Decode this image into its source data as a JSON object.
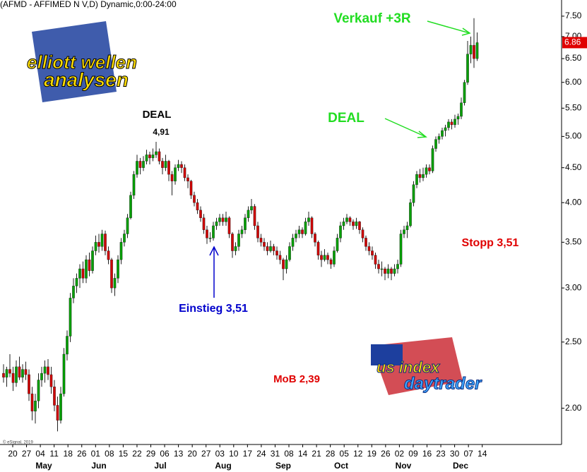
{
  "chart_data": {
    "type": "candlestick",
    "title": "(AFMD - AFFIMED N V,D) Dynamic,0:00-24:00",
    "log_scale": true,
    "ylim": [
      1.77,
      7.92
    ],
    "yticks": [
      {
        "value": 2,
        "label": "2.00"
      },
      {
        "value": 2.5,
        "label": "2.50"
      },
      {
        "value": 3,
        "label": "3.00"
      },
      {
        "value": 3.5,
        "label": "3.50"
      },
      {
        "value": 4,
        "label": "4.00"
      },
      {
        "value": 4.5,
        "label": "4.50"
      },
      {
        "value": 5,
        "label": "5.00"
      },
      {
        "value": 5.5,
        "label": "5.50"
      },
      {
        "value": 6,
        "label": "6.00"
      },
      {
        "value": 6.5,
        "label": "6.50"
      },
      {
        "value": 7,
        "label": "7.00"
      },
      {
        "value": 7.5,
        "label": "7.50"
      }
    ],
    "x_tick_labels": [
      "20",
      "27",
      "04",
      "11",
      "18",
      "26",
      "01",
      "08",
      "15",
      "22",
      "29",
      "06",
      "13",
      "20",
      "27",
      "03",
      "10",
      "17",
      "24",
      "31",
      "08",
      "14",
      "21",
      "28",
      "05",
      "12",
      "19",
      "26",
      "02",
      "09",
      "16",
      "23",
      "30",
      "07",
      "14"
    ],
    "months": [
      "May",
      "Jun",
      "Jul",
      "Aug",
      "Sep",
      "Oct",
      "Nov",
      "Dec"
    ],
    "up_color": "#00a000",
    "down_color": "#d00000",
    "ohlc": [
      [
        2.25,
        2.32,
        2.18,
        2.22
      ],
      [
        2.22,
        2.3,
        2.15,
        2.28
      ],
      [
        2.28,
        2.4,
        2.22,
        2.25
      ],
      [
        2.25,
        2.3,
        2.12,
        2.18
      ],
      [
        2.18,
        2.35,
        2.15,
        2.3
      ],
      [
        2.3,
        2.38,
        2.2,
        2.22
      ],
      [
        2.22,
        2.32,
        2.18,
        2.28
      ],
      [
        2.28,
        2.34,
        2.2,
        2.24
      ],
      [
        2.24,
        2.28,
        2.05,
        2.1
      ],
      [
        2.1,
        2.15,
        1.92,
        1.98
      ],
      [
        1.98,
        2.1,
        1.9,
        2.05
      ],
      [
        2.05,
        2.25,
        2.0,
        2.2
      ],
      [
        2.2,
        2.3,
        2.15,
        2.25
      ],
      [
        2.25,
        2.35,
        2.18,
        2.3
      ],
      [
        2.3,
        2.36,
        2.2,
        2.24
      ],
      [
        2.24,
        2.3,
        2.1,
        2.15
      ],
      [
        2.15,
        2.2,
        1.98,
        2.02
      ],
      [
        2.02,
        2.08,
        1.85,
        1.92
      ],
      [
        1.92,
        2.15,
        1.9,
        2.1
      ],
      [
        2.1,
        2.45,
        2.08,
        2.4
      ],
      [
        2.4,
        2.6,
        2.35,
        2.55
      ],
      [
        2.55,
        2.95,
        2.5,
        2.9
      ],
      [
        2.9,
        3.1,
        2.85,
        3.02
      ],
      [
        3.02,
        3.15,
        2.95,
        3.1
      ],
      [
        3.1,
        3.25,
        3.0,
        3.2
      ],
      [
        3.2,
        3.28,
        3.05,
        3.1
      ],
      [
        3.1,
        3.35,
        3.05,
        3.3
      ],
      [
        3.3,
        3.38,
        3.12,
        3.18
      ],
      [
        3.18,
        3.45,
        3.15,
        3.4
      ],
      [
        3.4,
        3.58,
        3.35,
        3.5
      ],
      [
        3.5,
        3.6,
        3.38,
        3.45
      ],
      [
        3.45,
        3.65,
        3.4,
        3.6
      ],
      [
        3.6,
        3.64,
        3.35,
        3.4
      ],
      [
        3.4,
        3.45,
        3.25,
        3.3
      ],
      [
        3.3,
        3.32,
        2.95,
        3.0
      ],
      [
        3.0,
        3.15,
        2.92,
        3.1
      ],
      [
        3.1,
        3.35,
        3.05,
        3.3
      ],
      [
        3.3,
        3.55,
        3.25,
        3.5
      ],
      [
        3.5,
        3.65,
        3.45,
        3.6
      ],
      [
        3.6,
        3.85,
        3.55,
        3.8
      ],
      [
        3.8,
        4.15,
        3.78,
        4.1
      ],
      [
        4.1,
        4.45,
        4.05,
        4.4
      ],
      [
        4.4,
        4.7,
        4.35,
        4.6
      ],
      [
        4.6,
        4.65,
        4.4,
        4.5
      ],
      [
        4.5,
        4.68,
        4.45,
        4.6
      ],
      [
        4.6,
        4.78,
        4.55,
        4.7
      ],
      [
        4.7,
        4.75,
        4.55,
        4.65
      ],
      [
        4.65,
        4.8,
        4.6,
        4.7
      ],
      [
        4.7,
        4.91,
        4.65,
        4.75
      ],
      [
        4.75,
        4.8,
        4.55,
        4.6
      ],
      [
        4.6,
        4.65,
        4.4,
        4.5
      ],
      [
        4.5,
        4.7,
        4.45,
        4.6
      ],
      [
        4.6,
        4.62,
        4.3,
        4.4
      ],
      [
        4.4,
        4.45,
        4.1,
        4.3
      ],
      [
        4.3,
        4.55,
        4.25,
        4.5
      ],
      [
        4.5,
        4.62,
        4.45,
        4.55
      ],
      [
        4.55,
        4.6,
        4.42,
        4.5
      ],
      [
        4.5,
        4.55,
        4.3,
        4.35
      ],
      [
        4.35,
        4.4,
        4.2,
        4.3
      ],
      [
        4.3,
        4.32,
        4.05,
        4.1
      ],
      [
        4.1,
        4.15,
        3.95,
        4.0
      ],
      [
        4.0,
        4.05,
        3.85,
        3.9
      ],
      [
        3.9,
        3.95,
        3.75,
        3.8
      ],
      [
        3.8,
        3.85,
        3.6,
        3.65
      ],
      [
        3.65,
        3.7,
        3.48,
        3.55
      ],
      [
        3.55,
        3.62,
        3.5,
        3.55
      ],
      [
        3.55,
        3.75,
        3.52,
        3.7
      ],
      [
        3.7,
        3.8,
        3.65,
        3.75
      ],
      [
        3.75,
        3.85,
        3.7,
        3.8
      ],
      [
        3.8,
        3.85,
        3.7,
        3.75
      ],
      [
        3.75,
        3.88,
        3.7,
        3.8
      ],
      [
        3.8,
        3.82,
        3.55,
        3.6
      ],
      [
        3.6,
        3.62,
        3.32,
        3.4
      ],
      [
        3.4,
        3.5,
        3.35,
        3.45
      ],
      [
        3.45,
        3.65,
        3.4,
        3.6
      ],
      [
        3.6,
        3.7,
        3.55,
        3.65
      ],
      [
        3.65,
        3.85,
        3.6,
        3.8
      ],
      [
        3.8,
        3.95,
        3.75,
        3.9
      ],
      [
        3.9,
        4.05,
        3.85,
        3.95
      ],
      [
        3.95,
        3.98,
        3.65,
        3.7
      ],
      [
        3.7,
        3.75,
        3.5,
        3.55
      ],
      [
        3.55,
        3.6,
        3.45,
        3.5
      ],
      [
        3.5,
        3.55,
        3.4,
        3.45
      ],
      [
        3.45,
        3.5,
        3.35,
        3.4
      ],
      [
        3.4,
        3.52,
        3.38,
        3.45
      ],
      [
        3.45,
        3.48,
        3.35,
        3.4
      ],
      [
        3.4,
        3.45,
        3.3,
        3.35
      ],
      [
        3.35,
        3.4,
        3.25,
        3.3
      ],
      [
        3.3,
        3.32,
        3.08,
        3.2
      ],
      [
        3.2,
        3.35,
        3.15,
        3.3
      ],
      [
        3.3,
        3.5,
        3.28,
        3.45
      ],
      [
        3.45,
        3.6,
        3.4,
        3.55
      ],
      [
        3.55,
        3.65,
        3.5,
        3.6
      ],
      [
        3.6,
        3.7,
        3.55,
        3.65
      ],
      [
        3.65,
        3.68,
        3.55,
        3.6
      ],
      [
        3.6,
        3.8,
        3.58,
        3.75
      ],
      [
        3.75,
        3.88,
        3.7,
        3.8
      ],
      [
        3.8,
        3.82,
        3.55,
        3.6
      ],
      [
        3.6,
        3.62,
        3.45,
        3.5
      ],
      [
        3.5,
        3.52,
        3.3,
        3.35
      ],
      [
        3.35,
        3.4,
        3.22,
        3.3
      ],
      [
        3.3,
        3.42,
        3.28,
        3.35
      ],
      [
        3.35,
        3.38,
        3.25,
        3.3
      ],
      [
        3.3,
        3.32,
        3.2,
        3.25
      ],
      [
        3.25,
        3.45,
        3.22,
        3.4
      ],
      [
        3.4,
        3.6,
        3.38,
        3.55
      ],
      [
        3.55,
        3.75,
        3.5,
        3.7
      ],
      [
        3.7,
        3.8,
        3.65,
        3.75
      ],
      [
        3.75,
        3.85,
        3.72,
        3.8
      ],
      [
        3.8,
        3.82,
        3.7,
        3.75
      ],
      [
        3.75,
        3.78,
        3.65,
        3.7
      ],
      [
        3.7,
        3.8,
        3.66,
        3.75
      ],
      [
        3.75,
        3.76,
        3.6,
        3.65
      ],
      [
        3.65,
        3.68,
        3.5,
        3.55
      ],
      [
        3.55,
        3.58,
        3.4,
        3.45
      ],
      [
        3.45,
        3.5,
        3.35,
        3.4
      ],
      [
        3.4,
        3.45,
        3.3,
        3.35
      ],
      [
        3.35,
        3.38,
        3.2,
        3.25
      ],
      [
        3.25,
        3.3,
        3.15,
        3.2
      ],
      [
        3.2,
        3.28,
        3.12,
        3.2
      ],
      [
        3.2,
        3.22,
        3.08,
        3.15
      ],
      [
        3.15,
        3.25,
        3.1,
        3.2
      ],
      [
        3.2,
        3.22,
        3.08,
        3.15
      ],
      [
        3.15,
        3.25,
        3.12,
        3.2
      ],
      [
        3.2,
        3.3,
        3.15,
        3.25
      ],
      [
        3.25,
        3.65,
        3.22,
        3.6
      ],
      [
        3.6,
        3.7,
        3.55,
        3.65
      ],
      [
        3.65,
        3.75,
        3.55,
        3.7
      ],
      [
        3.7,
        4.05,
        3.68,
        4.0
      ],
      [
        4.0,
        4.3,
        3.95,
        4.25
      ],
      [
        4.25,
        4.45,
        4.2,
        4.4
      ],
      [
        4.4,
        4.48,
        4.28,
        4.35
      ],
      [
        4.35,
        4.5,
        4.3,
        4.4
      ],
      [
        4.4,
        4.55,
        4.35,
        4.5
      ],
      [
        4.5,
        4.55,
        4.4,
        4.45
      ],
      [
        4.45,
        4.85,
        4.42,
        4.8
      ],
      [
        4.8,
        5.0,
        4.75,
        4.95
      ],
      [
        4.95,
        5.05,
        4.88,
        5.0
      ],
      [
        5.0,
        5.15,
        4.95,
        5.1
      ],
      [
        5.1,
        5.2,
        5.0,
        5.15
      ],
      [
        5.15,
        5.3,
        5.1,
        5.25
      ],
      [
        5.25,
        5.3,
        5.12,
        5.2
      ],
      [
        5.2,
        5.38,
        5.15,
        5.3
      ],
      [
        5.3,
        5.4,
        5.2,
        5.35
      ],
      [
        5.35,
        5.7,
        5.3,
        5.6
      ],
      [
        5.6,
        6.05,
        5.55,
        6.0
      ],
      [
        6.0,
        6.9,
        5.95,
        6.6
      ],
      [
        6.6,
        7.0,
        6.4,
        6.8
      ],
      [
        6.8,
        7.45,
        6.3,
        6.5
      ],
      [
        6.5,
        7.1,
        6.45,
        6.86
      ]
    ],
    "annotations": [
      {
        "text": "DEAL",
        "color": "#000000"
      },
      {
        "text": "4,91",
        "color": "#000000"
      },
      {
        "text": "Einstieg 3,51",
        "color": "#0000cc"
      },
      {
        "text": "Stopp 3,51",
        "color": "#e00000"
      },
      {
        "text": "MoB 2,39",
        "color": "#e00000"
      },
      {
        "text": "Verkauf +3R",
        "color": "#22dd22"
      },
      {
        "text": "DEAL",
        "color": "#22dd22"
      }
    ],
    "logos": [
      "elliott wellen",
      "analysen",
      "us index",
      "daytrader"
    ],
    "copyright": "© eSignal, 2019"
  }
}
